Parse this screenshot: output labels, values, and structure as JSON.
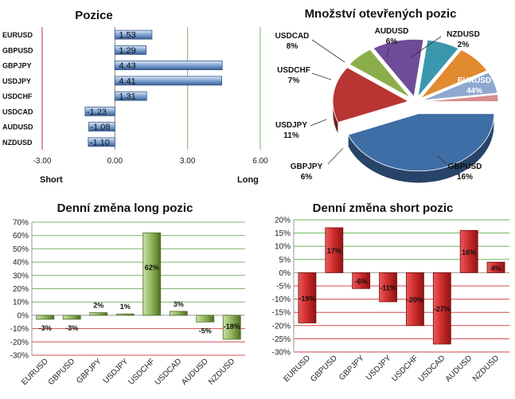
{
  "colors": {
    "long_bar": "#4a74b0",
    "long_grid": "#7ab66a",
    "short_bar": "#c9282b",
    "short_grid_red": "#d44a4a",
    "short_grid_green": "#6ab85a",
    "pie": [
      "#3f6ea7",
      "#b83533",
      "#8cae4a",
      "#6e4d98",
      "#3a97ad",
      "#e18a30",
      "#8ea8d2",
      "#d98c8c"
    ]
  },
  "chart_data": [
    {
      "type": "bar",
      "orientation": "horizontal",
      "title": "Pozice",
      "categories": [
        "EURUSD",
        "GBPUSD",
        "GBPJPY",
        "USDJPY",
        "USDCHF",
        "USDCAD",
        "AUDUSD",
        "NZDUSD"
      ],
      "values": [
        1.53,
        1.29,
        4.43,
        4.41,
        1.31,
        -1.23,
        -1.08,
        -1.1
      ],
      "value_labels": [
        "1.53",
        "1.29",
        "4.43",
        "4.41",
        "1.31",
        "-1.23",
        "-1.08",
        "-1.10"
      ],
      "xlim": [
        -3,
        6
      ],
      "xticks": [
        "-3.00",
        "0.00",
        "3.00",
        "6.00"
      ],
      "left_label": "Short",
      "right_label": "Long",
      "grid": "vertical"
    },
    {
      "type": "pie",
      "title": "Množství otevřených pozic",
      "labels": [
        "EURUSD",
        "GBPUSD",
        "GBPJPY",
        "USDJPY",
        "USDCHF",
        "USDCAD",
        "AUDUSD",
        "NZDUSD"
      ],
      "values": [
        44,
        16,
        6,
        11,
        7,
        8,
        6,
        2
      ],
      "value_labels": [
        "44%",
        "16%",
        "6%",
        "11%",
        "7%",
        "8%",
        "6%",
        "2%"
      ],
      "exploded": "EURUSD"
    },
    {
      "type": "bar",
      "title": "Denní změna long pozic",
      "categories": [
        "EURUSD",
        "GBPUSD",
        "GBPJPY",
        "USDJPY",
        "USDCHF",
        "USDCAD",
        "AUDUSD",
        "NZDUSD"
      ],
      "values": [
        -3,
        -3,
        2,
        1,
        62,
        3,
        -5,
        -18
      ],
      "value_labels": [
        "-3%",
        "-3%",
        "2%",
        "1%",
        "62%",
        "3%",
        "-5%",
        "-18%"
      ],
      "ylim": [
        -30,
        70
      ],
      "yticks": [
        "-30%",
        "-20%",
        "-10%",
        "0%",
        "10%",
        "20%",
        "30%",
        "40%",
        "50%",
        "60%",
        "70%"
      ],
      "grid": "horizontal"
    },
    {
      "type": "bar",
      "title": "Denní změna short pozic",
      "categories": [
        "EURUSD",
        "GBPUSD",
        "GBPJPY",
        "USDJPY",
        "USDCHF",
        "USDCAD",
        "AUDUSD",
        "NZDUSD"
      ],
      "values": [
        -19,
        17,
        -6,
        -11,
        -20,
        -27,
        16,
        4
      ],
      "value_labels": [
        "-19%",
        "17%",
        "-6%",
        "-11%",
        "-20%",
        "-27%",
        "16%",
        "4%"
      ],
      "ylim": [
        -30,
        20
      ],
      "yticks": [
        "-30%",
        "-25%",
        "-20%",
        "-15%",
        "-10%",
        "-5%",
        "0%",
        "5%",
        "10%",
        "15%",
        "20%"
      ],
      "grid": "horizontal"
    }
  ]
}
